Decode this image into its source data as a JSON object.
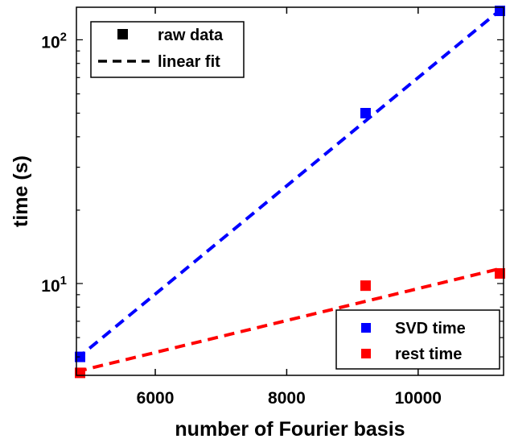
{
  "chart_data": {
    "type": "scatter",
    "xscale": "linear",
    "yscale": "log",
    "xlabel": "number of Fourier basis",
    "ylabel": "time (s)",
    "xlim": [
      4800,
      11300
    ],
    "ylim": [
      4.2,
      136
    ],
    "xticks": [
      {
        "value": 6000,
        "label": "6000"
      },
      {
        "value": 8000,
        "label": "8000"
      },
      {
        "value": 10000,
        "label": "10000"
      }
    ],
    "yticks": [
      {
        "value": 10,
        "base": "10",
        "exp": "1"
      },
      {
        "value": 100,
        "base": "10",
        "exp": "2"
      }
    ],
    "series": [
      {
        "name": "SVD time",
        "color": "#0000ff",
        "x": [
          4800,
          9200,
          11300
        ],
        "y": [
          5.0,
          50,
          136
        ],
        "fit": {
          "x": [
            4800,
            11300
          ],
          "y": [
            4.9,
            136
          ]
        }
      },
      {
        "name": "rest time",
        "color": "#ff0000",
        "x": [
          4800,
          9200,
          11300
        ],
        "y": [
          4.3,
          9.8,
          11.0
        ],
        "fit": {
          "x": [
            4800,
            11300
          ],
          "y": [
            4.35,
            11.6
          ]
        }
      }
    ],
    "legend_style": {
      "position": "top-left",
      "entries": [
        {
          "marker": "square",
          "color": "#000000",
          "label": "raw data"
        },
        {
          "marker": "dashed-line",
          "color": "#000000",
          "label": "linear fit"
        }
      ]
    },
    "legend_series": {
      "position": "bottom-right",
      "entries": [
        {
          "marker": "square",
          "color": "#0000ff",
          "label": "SVD time"
        },
        {
          "marker": "square",
          "color": "#ff0000",
          "label": "rest time"
        }
      ]
    }
  }
}
